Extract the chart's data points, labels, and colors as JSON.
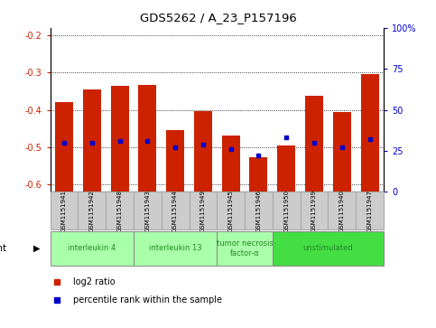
{
  "title": "GDS5262 / A_23_P157196",
  "samples": [
    "GSM1151941",
    "GSM1151942",
    "GSM1151948",
    "GSM1151943",
    "GSM1151944",
    "GSM1151949",
    "GSM1151945",
    "GSM1151946",
    "GSM1151950",
    "GSM1151939",
    "GSM1151940",
    "GSM1151947"
  ],
  "log2_ratio": [
    -0.38,
    -0.345,
    -0.335,
    -0.333,
    -0.455,
    -0.403,
    -0.47,
    -0.527,
    -0.495,
    -0.362,
    -0.405,
    -0.305
  ],
  "percentile_rank": [
    30,
    30,
    31,
    31,
    27,
    29,
    26,
    22,
    33,
    30,
    27,
    32
  ],
  "ylim_left": [
    -0.62,
    -0.18
  ],
  "ylim_right": [
    0,
    100
  ],
  "yticks_left": [
    -0.6,
    -0.5,
    -0.4,
    -0.3,
    -0.2
  ],
  "yticks_right": [
    0,
    25,
    50,
    75,
    100
  ],
  "agents": [
    {
      "label": "interleukin 4",
      "indices": [
        0,
        1,
        2
      ],
      "color": "#aaffaa"
    },
    {
      "label": "interleukin 13",
      "indices": [
        3,
        4,
        5
      ],
      "color": "#aaffaa"
    },
    {
      "label": "tumor necrosis\nfactor-α",
      "indices": [
        6,
        7
      ],
      "color": "#aaffaa"
    },
    {
      "label": "unstimulated",
      "indices": [
        8,
        9,
        10,
        11
      ],
      "color": "#44dd44"
    }
  ],
  "bar_color": "#cc2200",
  "marker_color": "#0000cc",
  "plot_bg": "#ffffff",
  "sample_box_color": "#cccccc",
  "sample_box_edge": "#aaaaaa"
}
